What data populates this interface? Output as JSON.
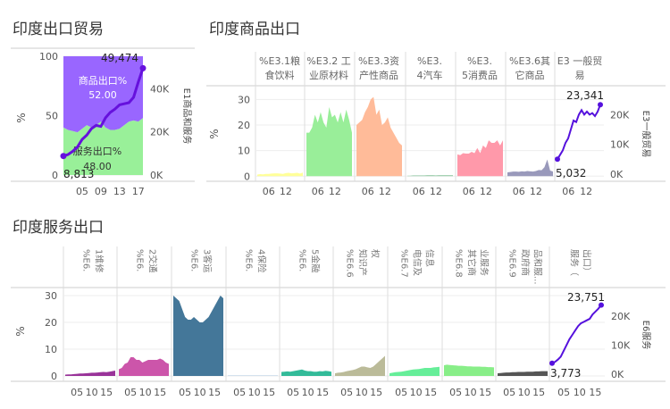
{
  "sections": {
    "trade": "印度出口贸易",
    "goods": "印度商品出口",
    "services": "印度服务出口"
  },
  "colors": {
    "goods_area": "#9966ff",
    "services_area": "#99f099",
    "trade_line": "#6611dd",
    "food": "#ffff99",
    "agri": "#99ee99",
    "fuel": "#ffbb99",
    "auto": "#99ccaa",
    "consumer": "#ff99aa",
    "other_goods": "#9999bb",
    "repair": "#993399",
    "transport": "#cc55aa",
    "travel": "#447799",
    "insurance": "#6699cc",
    "finance": "#33bb99",
    "ip": "#bbbb99",
    "telecom": "#66ee99",
    "other_biz": "#88ee88",
    "gov": "#555555",
    "total_line": "#5511dd"
  },
  "chart_data": [
    {
      "id": "trade",
      "type": "area",
      "title": "印度出口贸易",
      "ylabel": "%",
      "ylim": [
        0,
        100
      ],
      "y_ticks": [
        "0",
        "50",
        "100"
      ],
      "x_ticks": [
        "05",
        "09",
        "13",
        "17"
      ],
      "xlim": [
        2001,
        2018
      ],
      "x": [
        2001,
        2002,
        2003,
        2004,
        2005,
        2006,
        2007,
        2008,
        2009,
        2010,
        2011,
        2012,
        2013,
        2014,
        2015,
        2016,
        2017,
        2018
      ],
      "series": [
        {
          "name": "服务出口%",
          "values": [
            40,
            38,
            37,
            36,
            39,
            42,
            40,
            42,
            45,
            40,
            38,
            38,
            39,
            42,
            45,
            46,
            45,
            48
          ]
        },
        {
          "name": "商品出口%",
          "values": [
            60,
            62,
            63,
            64,
            61,
            58,
            60,
            58,
            55,
            60,
            62,
            62,
            61,
            58,
            55,
            54,
            55,
            52
          ]
        }
      ],
      "labels": {
        "goods_name": "商品出口%",
        "goods_value": "52.00",
        "services_name": "服务出口%",
        "services_value": "48.00"
      },
      "line": {
        "name": "E1商品和服务",
        "axis_label": "E1商品和服务",
        "axis_ticks": [
          "0K",
          "20K",
          "40K"
        ],
        "axis_max": 55000,
        "values": [
          8813,
          9500,
          11000,
          13000,
          16500,
          18500,
          21500,
          23000,
          22500,
          26500,
          29000,
          30500,
          32500,
          33000,
          33500,
          36000,
          43000,
          49474
        ],
        "start_label": "8,813",
        "end_label": "49,474"
      }
    },
    {
      "id": "goods",
      "type": "area",
      "title": "印度商品出口",
      "ylabel": "%",
      "ylim": [
        -2,
        35
      ],
      "y_ticks": [
        "0",
        "10",
        "20",
        "30"
      ],
      "x_ticks": [
        "06",
        "12"
      ],
      "xlim": [
        2002,
        2018
      ],
      "x": [
        2002,
        2003,
        2004,
        2005,
        2006,
        2007,
        2008,
        2009,
        2010,
        2011,
        2012,
        2013,
        2014,
        2015,
        2016,
        2017,
        2018
      ],
      "panels": [
        {
          "header": [
            "%E3.1粮",
            "食饮料"
          ],
          "color_key": "food",
          "values": [
            0.6,
            0.8,
            0.7,
            0.9,
            0.9,
            1.0,
            1.1,
            1.1,
            1.0,
            0.9,
            1.2,
            1.3,
            1.1,
            1.2,
            1.3,
            1.0,
            1.4
          ]
        },
        {
          "header": [
            "%E3.2 工",
            "业原材料"
          ],
          "color_key": "agri",
          "values": [
            17,
            17,
            19,
            24,
            21,
            25,
            21,
            19,
            27,
            23,
            24,
            21,
            25,
            21,
            26,
            22,
            17
          ]
        },
        {
          "header": [
            "%E3.3资",
            "产性商品"
          ],
          "color_key": "fuel",
          "values": [
            20,
            21,
            22,
            25,
            27,
            30,
            31,
            24,
            26,
            20,
            21,
            23,
            19,
            17,
            15,
            13,
            12
          ]
        },
        {
          "header": [
            "%E3.",
            "4汽车"
          ],
          "color_key": "auto",
          "values": [
            0.2,
            0.2,
            0.3,
            0.3,
            0.3,
            0.3,
            0.3,
            0.4,
            0.4,
            0.4,
            0.3,
            0.4,
            0.4,
            0.4,
            0.4,
            0.4,
            0.4
          ]
        },
        {
          "header": [
            "%E3.",
            "5消费品"
          ],
          "color_key": "consumer",
          "values": [
            8.5,
            8.2,
            9,
            8.8,
            8.8,
            9.5,
            9,
            11,
            9,
            12,
            11,
            14,
            13,
            13,
            14,
            12,
            14
          ]
        },
        {
          "header": [
            "%E3.6其",
            "它商品"
          ],
          "color_key": "other_goods",
          "values": [
            1.5,
            1.6,
            1.8,
            1.8,
            1.7,
            1.9,
            1.8,
            2.0,
            1.9,
            1.8,
            2.0,
            2.4,
            2.3,
            3.5,
            6.5,
            2.2,
            1.8
          ]
        }
      ],
      "line": {
        "name": "E3一般贸易",
        "header": [
          "E3 一般贸",
          "易"
        ],
        "axis_label": "E3一般贸易",
        "axis_ticks": [
          "0K",
          "10K",
          "20K"
        ],
        "axis_max": 27000,
        "values": [
          5032,
          6500,
          8000,
          10500,
          12000,
          15000,
          18000,
          17500,
          20000,
          21500,
          20000,
          21000,
          20000,
          20500,
          19500,
          21000,
          23341
        ],
        "start_label": "5,032",
        "end_label": "23,341"
      }
    },
    {
      "id": "services",
      "type": "area",
      "title": "印度服务出口",
      "ylabel": "%",
      "ylim": [
        -2,
        32
      ],
      "y_ticks": [
        "0",
        "10",
        "20",
        "30"
      ],
      "x_ticks": [
        "05",
        "10",
        "15"
      ],
      "xlim": [
        2001,
        2018
      ],
      "x": [
        2001,
        2002,
        2003,
        2004,
        2005,
        2006,
        2007,
        2008,
        2009,
        2010,
        2011,
        2012,
        2013,
        2014,
        2015,
        2016,
        2017,
        2018
      ],
      "panels": [
        {
          "header": [
            "%E6.",
            "1维修"
          ],
          "color_key": "repair",
          "values": [
            0.5,
            0.6,
            0.6,
            0.7,
            0.8,
            0.9,
            0.9,
            1.0,
            1.1,
            1.2,
            1.2,
            1.3,
            1.4,
            1.5,
            1.4,
            1.6,
            1.8,
            2.0
          ]
        },
        {
          "header": [
            "%E6.",
            "2交通"
          ],
          "color_key": "transport",
          "values": [
            2.5,
            3,
            4.5,
            5,
            7,
            7,
            6,
            6,
            5,
            5.5,
            6,
            6,
            6,
            6,
            6.5,
            6,
            5,
            4.5
          ]
        },
        {
          "header": [
            "%E6.",
            "3客运"
          ],
          "color_key": "travel",
          "values": [
            30,
            29,
            28,
            25,
            22,
            21,
            21,
            22,
            21,
            20,
            20,
            21,
            22,
            24,
            26,
            28,
            30,
            29
          ]
        },
        {
          "header": [
            "%E6.",
            "4保险"
          ],
          "color_key": "insurance",
          "values": [
            0.1,
            0.1,
            0.1,
            0.1,
            0.1,
            0.1,
            0.1,
            0.1,
            0.1,
            0.1,
            0.1,
            0.1,
            0.1,
            0.1,
            0.1,
            0.1,
            0.1,
            0.1
          ]
        },
        {
          "header": [
            "%E6.",
            "5金融"
          ],
          "color_key": "finance",
          "values": [
            1.5,
            1.6,
            1.7,
            1.6,
            1.8,
            2.0,
            2.2,
            2.4,
            2.0,
            1.8,
            1.8,
            1.6,
            1.6,
            1.8,
            1.7,
            1.9,
            1.8,
            1.6
          ]
        },
        {
          "header": [
            "%E6.6",
            "知识产",
            "权"
          ],
          "color_key": "ip",
          "values": [
            1.0,
            1.2,
            1.3,
            1.5,
            1.8,
            2.0,
            2.2,
            2.5,
            3.0,
            3.5,
            3.5,
            3.2,
            3.0,
            3.5,
            4.5,
            5.5,
            6.5,
            7.5
          ]
        },
        {
          "header": [
            "%E6.7",
            "电信及",
            "信息"
          ],
          "color_key": "telecom",
          "values": [
            1.0,
            1.2,
            1.4,
            1.5,
            1.6,
            1.8,
            2.0,
            2.2,
            2.4,
            2.5,
            2.6,
            2.8,
            3.0,
            3.0,
            3.0,
            3.2,
            3.3,
            3.4
          ]
        },
        {
          "header": [
            "%E6.8",
            "其它商",
            "业服务"
          ],
          "color_key": "other_biz",
          "values": [
            4.0,
            4.2,
            4.1,
            4.0,
            3.9,
            3.8,
            3.8,
            3.7,
            3.6,
            3.6,
            3.5,
            3.5,
            3.5,
            3.4,
            3.4,
            3.3,
            3.3,
            3.2
          ]
        },
        {
          "header": [
            "%E6.9",
            "政府商",
            "品和服..."
          ],
          "color_key": "gov",
          "values": [
            1.0,
            1.1,
            1.2,
            1.3,
            1.3,
            1.4,
            1.4,
            1.5,
            1.5,
            1.5,
            1.6,
            1.6,
            1.6,
            1.7,
            1.7,
            1.8,
            1.8,
            1.8
          ]
        }
      ],
      "line": {
        "name": "E6服务",
        "header": [
          "服务（",
          "出口）"
        ],
        "axis_label": "E6服务",
        "axis_ticks": [
          "0K",
          "10K",
          "20K"
        ],
        "axis_max": 27000,
        "values": [
          3773,
          4200,
          5000,
          6000,
          8000,
          10000,
          12000,
          13500,
          15000,
          16500,
          17500,
          18000,
          18500,
          19000,
          20500,
          21500,
          22500,
          23751
        ],
        "start_label": "3,773",
        "end_label": "23,751"
      }
    }
  ]
}
